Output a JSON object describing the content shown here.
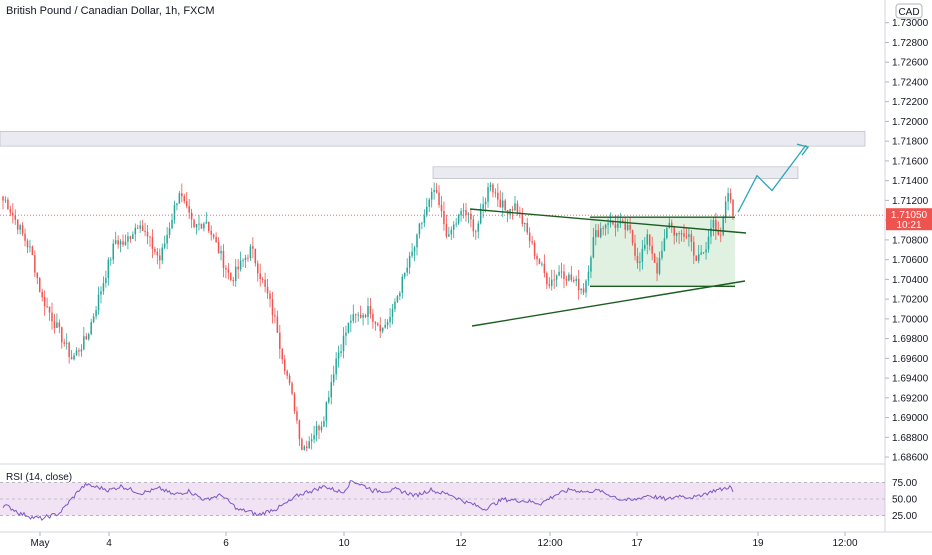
{
  "symbol": {
    "title": "British Pound / Canadian Dollar, 1h, FXCM"
  },
  "currency_button": "CAD",
  "last_price": {
    "value": "1.71050",
    "countdown": "10:21",
    "color": "#ef5350"
  },
  "rsi_panel": {
    "label": "RSI (14, close)",
    "ticks": [
      "75.00",
      "50.00",
      "25.00"
    ],
    "color": "#7e57c2",
    "band_color": "#e1bee7"
  },
  "colors": {
    "up": "#26a69a",
    "down": "#ef5350",
    "trendline": "#1b5e20",
    "projection": "#26a6b8",
    "zone": "#e0e3eb",
    "range_box": "#c8e6c9"
  },
  "chart_data": {
    "type": "candlestick",
    "title": "British Pound / Canadian Dollar, 1h, FXCM",
    "price_axis": {
      "ticks": [
        "1.73000",
        "1.72800",
        "1.72600",
        "1.72400",
        "1.72200",
        "1.72000",
        "1.71800",
        "1.71600",
        "1.71400",
        "1.71200",
        "1.71000",
        "1.70800",
        "1.70600",
        "1.70400",
        "1.70200",
        "1.70000",
        "1.69800",
        "1.69600",
        "1.69400",
        "1.69200",
        "1.69000",
        "1.68800",
        "1.68600"
      ],
      "range": [
        1.6855,
        1.7323
      ]
    },
    "time_axis": {
      "labels": [
        "May",
        "4",
        "6",
        "10",
        "12",
        "12:00",
        "17",
        "19",
        "12:00"
      ]
    },
    "price_path": [
      [
        1.712,
        2
      ],
      [
        1.707,
        10
      ],
      [
        1.702,
        5
      ],
      [
        1.696,
        12
      ],
      [
        1.698,
        6
      ],
      [
        1.708,
        12
      ],
      [
        1.7075,
        4
      ],
      [
        1.71,
        6
      ],
      [
        1.706,
        8
      ],
      [
        1.713,
        8
      ],
      [
        1.709,
        6
      ],
      [
        1.71,
        5
      ],
      [
        1.704,
        10
      ],
      [
        1.707,
        8
      ],
      [
        1.703,
        6
      ],
      [
        1.699,
        5
      ],
      [
        1.692,
        6
      ],
      [
        1.687,
        4
      ],
      [
        1.6895,
        8
      ],
      [
        1.696,
        6
      ],
      [
        1.7,
        6
      ],
      [
        1.701,
        8
      ],
      [
        1.699,
        5
      ],
      [
        1.7005,
        4
      ],
      [
        1.708,
        10
      ],
      [
        1.713,
        7
      ],
      [
        1.708,
        6
      ],
      [
        1.711,
        6
      ],
      [
        1.709,
        5
      ],
      [
        1.714,
        6
      ],
      [
        1.711,
        6
      ],
      [
        1.7115,
        4
      ],
      [
        1.708,
        6
      ],
      [
        1.704,
        7
      ],
      [
        1.705,
        6
      ],
      [
        1.704,
        4
      ],
      [
        1.703,
        5
      ],
      [
        1.708,
        4
      ],
      [
        1.71,
        6
      ],
      [
        1.7095,
        4
      ],
      [
        1.709,
        4
      ],
      [
        1.706,
        4
      ],
      [
        1.708,
        4
      ],
      [
        1.705,
        4
      ],
      [
        1.71,
        5
      ],
      [
        1.708,
        4
      ],
      [
        1.7085,
        4
      ],
      [
        1.706,
        3
      ],
      [
        1.707,
        4
      ],
      [
        1.7105,
        3
      ],
      [
        1.708,
        3
      ],
      [
        1.7128,
        3
      ],
      [
        1.7105,
        2
      ]
    ],
    "rsi_path": [
      [
        42,
        2
      ],
      [
        35,
        8
      ],
      [
        30,
        7
      ],
      [
        26,
        10
      ],
      [
        32,
        8
      ],
      [
        58,
        12
      ],
      [
        68,
        6
      ],
      [
        62,
        12
      ],
      [
        66,
        10
      ],
      [
        58,
        10
      ],
      [
        62,
        12
      ],
      [
        55,
        10
      ],
      [
        60,
        10
      ],
      [
        48,
        10
      ],
      [
        55,
        10
      ],
      [
        40,
        8
      ],
      [
        35,
        8
      ],
      [
        30,
        6
      ],
      [
        38,
        10
      ],
      [
        50,
        12
      ],
      [
        60,
        10
      ],
      [
        66,
        10
      ],
      [
        58,
        10
      ],
      [
        72,
        6
      ],
      [
        62,
        12
      ],
      [
        60,
        14
      ],
      [
        55,
        12
      ],
      [
        62,
        12
      ],
      [
        55,
        12
      ],
      [
        45,
        10
      ],
      [
        38,
        10
      ],
      [
        50,
        12
      ],
      [
        48,
        12
      ],
      [
        45,
        10
      ],
      [
        55,
        10
      ],
      [
        62,
        10
      ],
      [
        58,
        10
      ],
      [
        60,
        8
      ],
      [
        52,
        10
      ],
      [
        48,
        10
      ],
      [
        55,
        10
      ],
      [
        50,
        10
      ],
      [
        55,
        10
      ],
      [
        52,
        10
      ],
      [
        58,
        8
      ],
      [
        62,
        8
      ],
      [
        65,
        4
      ],
      [
        58,
        2
      ]
    ],
    "annotations": {
      "resistance_zone_upper": [
        1.7175,
        1.719
      ],
      "resistance_zone_lower": [
        1.7142,
        1.7154
      ],
      "range_box": [
        1.7033,
        1.7103
      ],
      "projection_path": [
        1.7108,
        1.7145,
        1.713,
        1.7176
      ]
    },
    "rsi_levels": [
      25,
      50,
      75
    ]
  }
}
